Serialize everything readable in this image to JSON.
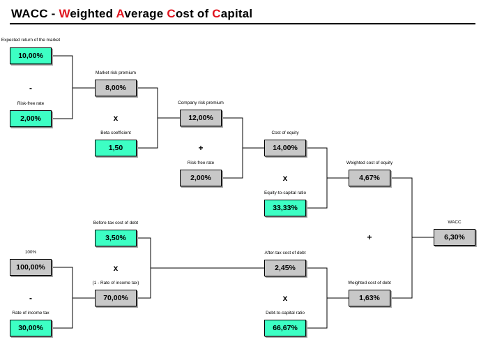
{
  "title": {
    "parts": [
      {
        "text": "WACC - ",
        "accent": false
      },
      {
        "text": "W",
        "accent": true
      },
      {
        "text": "eighted ",
        "accent": false
      },
      {
        "text": "A",
        "accent": true
      },
      {
        "text": "verage ",
        "accent": false
      },
      {
        "text": "C",
        "accent": true
      },
      {
        "text": "ost of ",
        "accent": false
      },
      {
        "text": "C",
        "accent": true
      },
      {
        "text": "apital",
        "accent": false
      }
    ]
  },
  "colors": {
    "input_box": "#3dffc4",
    "computed_box": "#c8c8c8",
    "title_accent": "#e0141e"
  },
  "nodes": {
    "expected_return": {
      "label": "Expected return of the market",
      "value": "10,00%"
    },
    "risk_free_a": {
      "label": "Risk-free rate",
      "value": "2,00%"
    },
    "market_risk_premium": {
      "label": "Market risk premium",
      "value": "8,00%"
    },
    "beta": {
      "label": "Beta coefficient",
      "value": "1,50"
    },
    "company_risk_premium": {
      "label": "Company risk premium",
      "value": "12,00%"
    },
    "risk_free_b": {
      "label": "Risk-free rate",
      "value": "2,00%"
    },
    "cost_of_equity": {
      "label": "Cost of equity",
      "value": "14,00%"
    },
    "equity_ratio": {
      "label": "Equity-to-capital ratio",
      "value": "33,33%"
    },
    "weighted_equity": {
      "label": "Weighted cost of equity",
      "value": "4,67%"
    },
    "wacc": {
      "label": "WACC",
      "value": "6,30%"
    },
    "pretax_debt": {
      "label": "Before-tax cost of debt",
      "value": "3,50%"
    },
    "hundred": {
      "label": "100%",
      "value": "100,00%"
    },
    "income_tax": {
      "label": "Rate of income tax",
      "value": "30,00%"
    },
    "one_minus_tax": {
      "label": "(1 - Rate of income tax)",
      "value": "70,00%"
    },
    "aftertax_debt": {
      "label": "After-tax cost of debt",
      "value": "2,45%"
    },
    "debt_ratio": {
      "label": "Debt-to-capital ratio",
      "value": "66,67%"
    },
    "weighted_debt": {
      "label": "Weighted cost of debt",
      "value": "1,63%"
    }
  },
  "operators": {
    "minus_market": "-",
    "times_beta": "x",
    "plus_riskfree": "+",
    "times_equity": "x",
    "plus_wacc": "+",
    "times_tax": "x",
    "minus_tax": "-",
    "times_debt": "x"
  }
}
